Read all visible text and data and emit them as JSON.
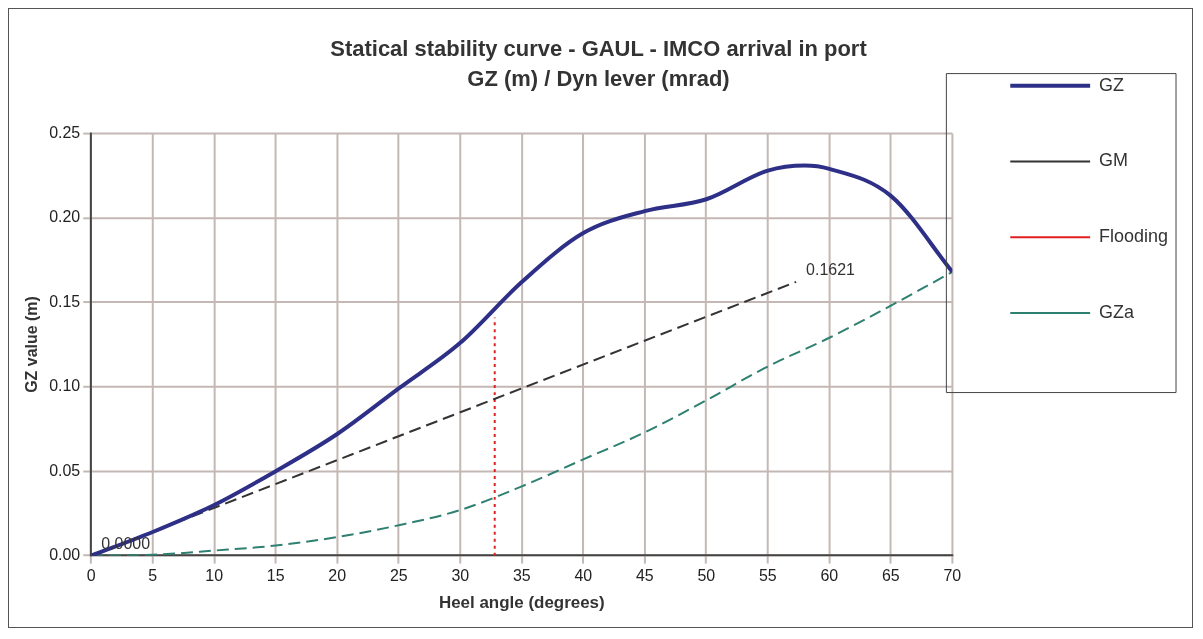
{
  "chart_data": {
    "type": "line",
    "title": "Statical stability curve - GAUL - IMCO arrival in port",
    "subtitle": "GZ (m) / Dyn lever (mrad)",
    "xlabel": "Heel angle (degrees)",
    "ylabel": "GZ value (m)",
    "series": [
      {
        "name": "GZ",
        "color": "#2e3087",
        "line_style": "solid",
        "x": [
          0,
          5,
          10,
          15,
          20,
          25,
          30,
          35,
          40,
          45,
          50,
          55,
          58,
          60,
          65,
          70
        ],
        "values": [
          0,
          0.014,
          0.03,
          0.05,
          0.072,
          0.099,
          0.126,
          0.162,
          0.191,
          0.204,
          0.211,
          0.228,
          0.231,
          0.229,
          0.213,
          0.168
        ]
      },
      {
        "name": "GM",
        "color": "#333333",
        "line_style": "dashed",
        "x": [
          0,
          57.3
        ],
        "values": [
          0,
          0.1621
        ]
      },
      {
        "name": "Flooding",
        "color": "#e02020",
        "line_style": "dotted",
        "x": [
          32.8,
          32.8
        ],
        "values": [
          0,
          0.141
        ]
      },
      {
        "name": "GZa",
        "color": "#2e8070",
        "line_style": "dashed",
        "x": [
          0,
          5,
          10,
          15,
          20,
          25,
          30,
          35,
          40,
          45,
          50,
          55,
          60,
          65,
          70
        ],
        "values": [
          0,
          0.0005,
          0.003,
          0.006,
          0.011,
          0.018,
          0.027,
          0.041,
          0.057,
          0.073,
          0.092,
          0.112,
          0.129,
          0.148,
          0.168
        ]
      }
    ],
    "xlim": [
      0,
      70
    ],
    "xticks": [
      0,
      5,
      10,
      15,
      20,
      25,
      30,
      35,
      40,
      45,
      50,
      55,
      60,
      65,
      70
    ],
    "ylim": [
      0,
      0.25
    ],
    "yticks": [
      {
        "value": 0,
        "label": "0.00"
      },
      {
        "value": 0.05,
        "label": "0.05"
      },
      {
        "value": 0.1,
        "label": "0.10"
      },
      {
        "value": 0.15,
        "label": "0.15"
      },
      {
        "value": 0.2,
        "label": "0.20"
      },
      {
        "value": 0.25,
        "label": "0.25"
      }
    ],
    "annotations": [
      {
        "text": "0.0000",
        "x": 0,
        "y": 0
      },
      {
        "text": "0.1621",
        "x": 57.3,
        "y": 0.1621
      }
    ],
    "grid": true,
    "legend": "right",
    "marker": "none"
  }
}
